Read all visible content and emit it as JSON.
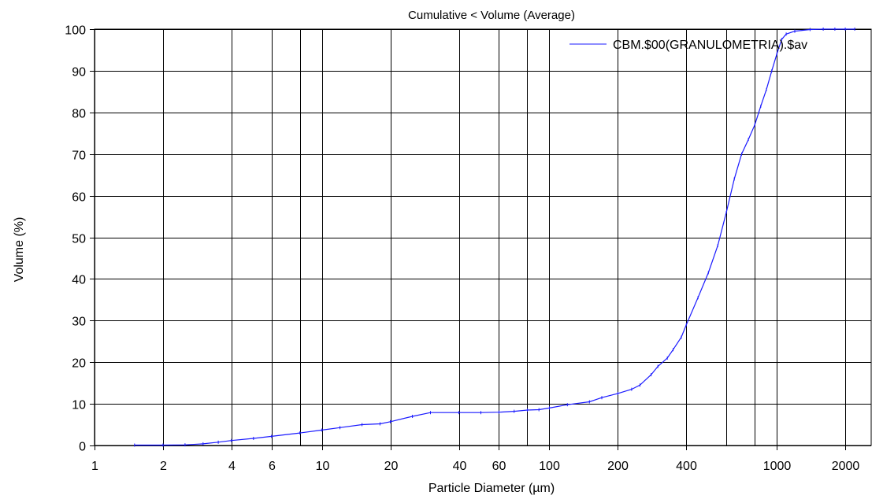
{
  "chart_data": {
    "type": "line",
    "title": "Cumulative < Volume (Average)",
    "xlabel": "Particle Diameter (µm)",
    "ylabel": "Volume (%)",
    "xscale": "log",
    "xlim": [
      1,
      2600
    ],
    "ylim": [
      0,
      100
    ],
    "x_ticks": [
      1,
      2,
      4,
      6,
      10,
      20,
      40,
      60,
      100,
      200,
      400,
      1000,
      2000
    ],
    "x_tick_labels": [
      "1",
      "2",
      "4",
      "6",
      "10",
      "20",
      "40",
      "60",
      "100",
      "200",
      "400",
      "1000",
      "2000"
    ],
    "y_ticks": [
      0,
      10,
      20,
      30,
      40,
      50,
      60,
      70,
      80,
      90,
      100
    ],
    "y_tick_labels": [
      "0",
      "10",
      "20",
      "30",
      "40",
      "50",
      "60",
      "70",
      "80",
      "90",
      "100"
    ],
    "x_gridlines": [
      1,
      2,
      4,
      6,
      8,
      10,
      20,
      40,
      60,
      80,
      100,
      200,
      400,
      600,
      800,
      1000,
      2000
    ],
    "grid": true,
    "legend": {
      "position": "top-right"
    },
    "series": [
      {
        "name": "CBM.$00(GRANULOMETRIA).$av",
        "color": "#1a1aff",
        "x": [
          1.5,
          2,
          2.5,
          3,
          3.5,
          4,
          5,
          6,
          8,
          10,
          12,
          15,
          18,
          20,
          25,
          30,
          40,
          50,
          60,
          70,
          80,
          90,
          100,
          120,
          150,
          170,
          200,
          230,
          250,
          280,
          300,
          330,
          350,
          380,
          400,
          450,
          500,
          550,
          600,
          650,
          700,
          750,
          800,
          850,
          900,
          950,
          1000,
          1050,
          1100,
          1200,
          1400,
          1600,
          1800,
          2000,
          2200
        ],
        "y": [
          0.1,
          0.1,
          0.15,
          0.4,
          0.8,
          1.2,
          1.7,
          2.2,
          3.0,
          3.7,
          4.3,
          5.0,
          5.2,
          5.7,
          7.0,
          7.9,
          7.9,
          7.9,
          8.0,
          8.2,
          8.5,
          8.6,
          9.0,
          9.8,
          10.5,
          11.5,
          12.5,
          13.5,
          14.5,
          17.0,
          19.0,
          21.0,
          23.0,
          26.0,
          29.0,
          35.5,
          41.5,
          48.0,
          56.0,
          64.0,
          70.0,
          73.5,
          77.0,
          81.5,
          85.5,
          90.0,
          94.0,
          97.5,
          98.8,
          99.5,
          99.9,
          100,
          100,
          100,
          100
        ]
      }
    ]
  }
}
